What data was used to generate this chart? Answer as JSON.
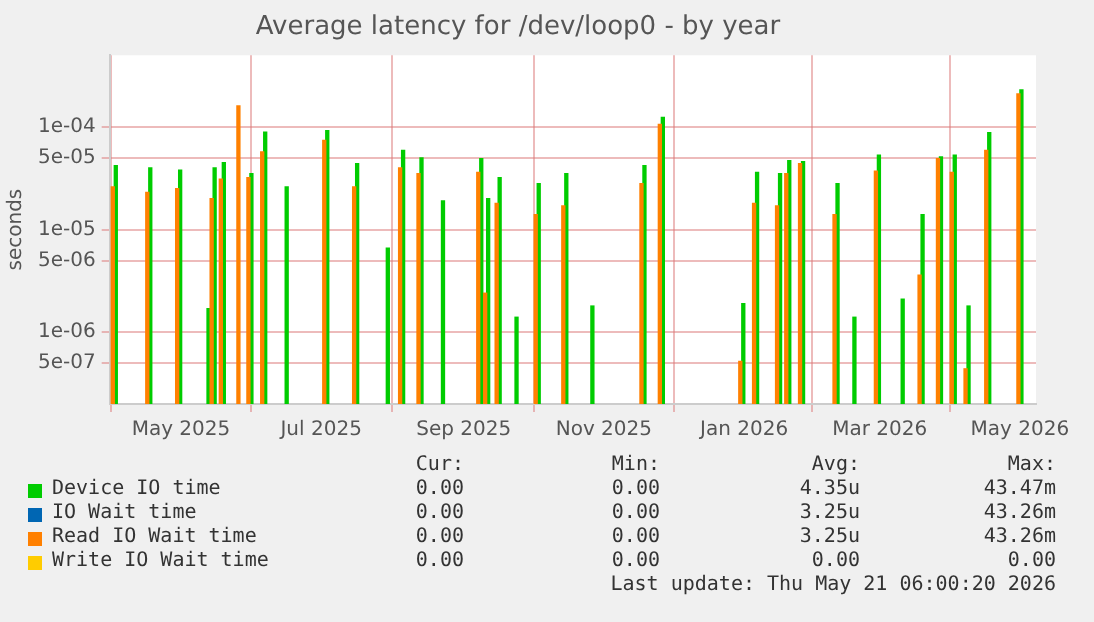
{
  "chart_data": {
    "type": "bar",
    "title": "Average latency for /dev/loop0 - by year",
    "ylabel": "seconds",
    "log": "y",
    "grid": true,
    "legend": "bottom",
    "x": [
      "2025-04-02",
      "2025-04-17",
      "2025-04-30",
      "2025-05-13",
      "2025-05-15",
      "2025-05-19",
      "2025-05-26",
      "2025-05-31",
      "2025-06-06",
      "2025-06-16",
      "2025-07-03",
      "2025-07-16",
      "2025-07-30",
      "2025-08-05",
      "2025-08-13",
      "2025-08-23",
      "2025-09-08",
      "2025-09-11",
      "2025-09-16",
      "2025-09-24",
      "2025-10-03",
      "2025-10-15",
      "2025-10-27",
      "2025-11-18",
      "2025-11-26",
      "2025-12-31",
      "2026-01-06",
      "2026-01-16",
      "2026-01-20",
      "2026-01-26",
      "2026-02-10",
      "2026-02-18",
      "2026-02-28",
      "2026-03-11",
      "2026-03-19",
      "2026-03-27",
      "2026-04-02",
      "2026-04-08",
      "2026-04-17",
      "2026-05-01"
    ],
    "xlim": [
      "2025-03-31",
      "2026-05-08"
    ],
    "xticks": [
      {
        "value": "2025-05-01",
        "label": "May 2025"
      },
      {
        "value": "2025-07-01",
        "label": "Jul 2025"
      },
      {
        "value": "2025-09-01",
        "label": "Sep 2025"
      },
      {
        "value": "2025-11-01",
        "label": "Nov 2025"
      },
      {
        "value": "2026-01-01",
        "label": "Jan 2026"
      },
      {
        "value": "2026-03-01",
        "label": "Mar 2026"
      },
      {
        "value": "2026-05-01",
        "label": "May 2026"
      }
    ],
    "ylim": [
      2e-07,
      0.0005
    ],
    "yticks": [
      {
        "value": 5e-07,
        "label": "5e-07"
      },
      {
        "value": 1e-06,
        "label": "1e-06"
      },
      {
        "value": 5e-06,
        "label": "5e-06"
      },
      {
        "value": 1e-05,
        "label": "1e-05"
      },
      {
        "value": 5e-05,
        "label": "5e-05"
      },
      {
        "value": 0.0001,
        "label": "1e-04"
      }
    ],
    "series": [
      {
        "name": "Device IO time",
        "color": "#00cc00",
        "values": [
          4.2e-05,
          4e-05,
          3.8e-05,
          1.7e-06,
          4e-05,
          4.5e-05,
          null,
          3.5e-05,
          8.9e-05,
          2.6e-05,
          9.2e-05,
          4.4e-05,
          6.6e-06,
          5.9e-05,
          5e-05,
          1.9e-05,
          4.9e-05,
          2e-05,
          3.2e-05,
          1.4e-06,
          2.8e-05,
          3.5e-05,
          1.8e-06,
          4.2e-05,
          0.000124,
          1.9e-06,
          3.6e-05,
          3.5e-05,
          4.7e-05,
          4.6e-05,
          2.8e-05,
          1.4e-06,
          5.3e-05,
          2.1e-06,
          1.4e-05,
          5.1e-05,
          5.3e-05,
          1.8e-06,
          8.8e-05,
          0.00023
        ]
      },
      {
        "name": "IO Wait time",
        "color": "#0066b3",
        "values": [
          null,
          null,
          null,
          null,
          null,
          null,
          null,
          null,
          null,
          null,
          null,
          null,
          null,
          null,
          null,
          null,
          null,
          null,
          null,
          null,
          null,
          null,
          null,
          null,
          null,
          null,
          null,
          null,
          null,
          null,
          null,
          null,
          null,
          null,
          null,
          null,
          null,
          null,
          null,
          null
        ]
      },
      {
        "name": "Read IO Wait time",
        "color": "#ff8000",
        "values": [
          2.6e-05,
          2.3e-05,
          2.5e-05,
          null,
          2e-05,
          3.1e-05,
          0.00016,
          3.2e-05,
          5.7e-05,
          null,
          7.4e-05,
          2.6e-05,
          null,
          4e-05,
          3.5e-05,
          null,
          3.6e-05,
          2.4e-06,
          1.8e-05,
          null,
          1.4e-05,
          1.7e-05,
          null,
          2.8e-05,
          0.000106,
          5.2e-07,
          1.8e-05,
          1.7e-05,
          3.5e-05,
          4.4e-05,
          1.4e-05,
          null,
          3.7e-05,
          null,
          3.6e-06,
          4.9e-05,
          3.6e-05,
          4.4e-07,
          5.9e-05,
          0.00021
        ]
      },
      {
        "name": "Write IO Wait time",
        "color": "#ffcc00",
        "values": [
          null,
          null,
          null,
          null,
          null,
          null,
          null,
          null,
          null,
          null,
          null,
          null,
          null,
          null,
          null,
          null,
          null,
          null,
          null,
          null,
          null,
          null,
          null,
          null,
          null,
          null,
          null,
          null,
          null,
          null,
          null,
          null,
          null,
          null,
          null,
          null,
          null,
          null,
          null,
          null
        ]
      }
    ],
    "annotations": [
      "Cur:",
      "Min:",
      "Avg:",
      "Max:",
      "0.00",
      "0.00",
      "4.35u",
      "43.47m",
      "0.00",
      "0.00",
      "3.25u",
      "43.26m",
      "0.00",
      "0.00",
      "3.25u",
      "43.26m",
      "0.00",
      "0.00",
      "0.00",
      "0.00",
      "Last update: Thu May 21 06:00:20 2026"
    ]
  }
}
